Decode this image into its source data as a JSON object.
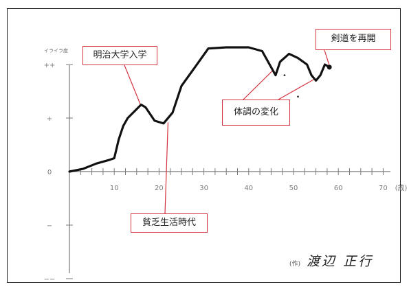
{
  "chart_data": {
    "type": "line",
    "ylabel": "イライラ度",
    "x_tick_labels": [
      "10",
      "20",
      "30",
      "40",
      "50",
      "60",
      "70"
    ],
    "x_unit": "(歳)",
    "y_tick_labels": [
      "++",
      "+",
      "0",
      "−",
      "−−"
    ],
    "xlim": [
      0,
      80
    ],
    "ylim": [
      -2.2,
      2.4
    ],
    "series": [
      {
        "values": [
          [
            0,
            0
          ],
          [
            3,
            0.05
          ],
          [
            6,
            0.15
          ],
          [
            9,
            0.22
          ],
          [
            10,
            0.25
          ],
          [
            11,
            0.6
          ],
          [
            12,
            0.85
          ],
          [
            13,
            1.0
          ],
          [
            16,
            1.25
          ],
          [
            17,
            1.2
          ],
          [
            19,
            0.95
          ],
          [
            21,
            0.9
          ],
          [
            23,
            1.1
          ],
          [
            25,
            1.6
          ],
          [
            28,
            1.95
          ],
          [
            31,
            2.3
          ],
          [
            35,
            2.32
          ],
          [
            40,
            2.32
          ],
          [
            43,
            2.25
          ],
          [
            45,
            1.95
          ],
          [
            46,
            1.8
          ],
          [
            47,
            2.05
          ],
          [
            49,
            2.2
          ],
          [
            51,
            2.12
          ],
          [
            53,
            2.0
          ],
          [
            54,
            1.8
          ],
          [
            55,
            1.7
          ],
          [
            56,
            1.8
          ],
          [
            57,
            2.0
          ],
          [
            58,
            1.95
          ]
        ],
        "color": "#111111"
      }
    ],
    "scatter_marks": [
      [
        48,
        1.8
      ],
      [
        51,
        1.4
      ]
    ],
    "annotations": [
      {
        "text": "明治大学入学",
        "x": 16,
        "y": 1.25
      },
      {
        "text": "貧乏生活時代",
        "x": 22,
        "y": 0.9
      },
      {
        "text": "体調の変化",
        "x": 47,
        "y": 1.85
      },
      {
        "text": "剣道を再開",
        "x": 58,
        "y": 1.98
      }
    ],
    "grid": false
  },
  "signature": {
    "prefix": "(作)",
    "name": "渡辺 正行"
  },
  "colors": {
    "callout_border": "#d4323f",
    "line": "#111111",
    "axis": "#777777"
  }
}
